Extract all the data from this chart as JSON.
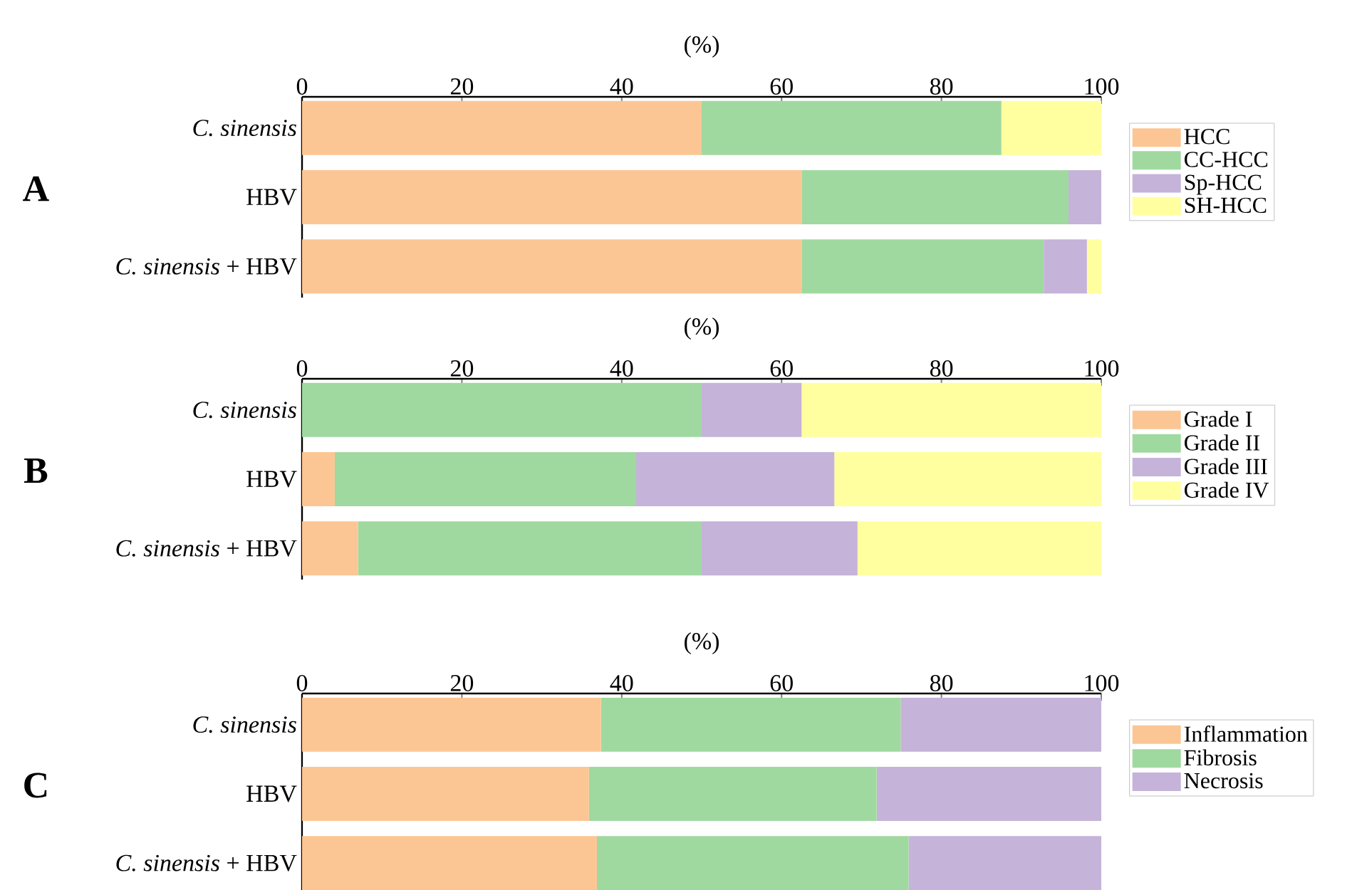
{
  "chart_data": [
    {
      "type": "bar",
      "orientation": "horizontal",
      "stacked": true,
      "title": "A",
      "xlabel": "(%)",
      "legend": "right",
      "categories": [
        "*C. sinensis*",
        "HBV",
        "*C. sinensis* + HBV"
      ],
      "xlim": [
        0,
        100
      ],
      "xticks": [
        0,
        20,
        40,
        60,
        80,
        100
      ],
      "series": [
        {
          "name": "HCC",
          "color": "#fcc694",
          "values": [
            50,
            62.5,
            62.5
          ]
        },
        {
          "name": "CC-HCC",
          "color": "#a0d9a0",
          "values": [
            37.5,
            33.4,
            30.3
          ]
        },
        {
          "name": "Sp-HCC",
          "color": "#c5b3d9",
          "values": [
            0,
            4.1,
            5.4
          ]
        },
        {
          "name": "SH-HCC",
          "color": "#ffff9f",
          "values": [
            12.5,
            0,
            1.8
          ]
        }
      ]
    },
    {
      "type": "bar",
      "orientation": "horizontal",
      "stacked": true,
      "title": "B",
      "xlabel": "(%)",
      "legend": "right",
      "categories": [
        "*C. sinensis*",
        "HBV",
        "*C. sinensis* + HBV"
      ],
      "xlim": [
        0,
        100
      ],
      "xticks": [
        0,
        20,
        40,
        60,
        80,
        100
      ],
      "series": [
        {
          "name": "Grade I",
          "color": "#fcc694",
          "values": [
            0,
            4.1,
            7.0
          ]
        },
        {
          "name": "Grade II",
          "color": "#a0d9a0",
          "values": [
            50,
            37.7,
            43.0
          ]
        },
        {
          "name": "Grade III",
          "color": "#c5b3d9",
          "values": [
            12.5,
            24.8,
            19.5
          ]
        },
        {
          "name": "Grade IV",
          "color": "#ffff9f",
          "values": [
            37.5,
            33.4,
            30.5
          ]
        }
      ]
    },
    {
      "type": "bar",
      "orientation": "horizontal",
      "stacked": true,
      "title": "C",
      "xlabel": "(%)",
      "legend": "right",
      "categories": [
        "*C. sinensis*",
        "HBV",
        "*C. sinensis* + HBV"
      ],
      "xlim": [
        0,
        100
      ],
      "xticks": [
        0,
        20,
        40,
        60,
        80,
        100
      ],
      "series": [
        {
          "name": "Inflammation",
          "color": "#fcc694",
          "values": [
            37.4,
            35.9,
            36.9
          ]
        },
        {
          "name": "Fibrosis",
          "color": "#a0d9a0",
          "values": [
            37.5,
            36.0,
            39.0
          ]
        },
        {
          "name": "Necrosis",
          "color": "#c5b3d9",
          "values": [
            25.1,
            28.1,
            24.1
          ]
        }
      ]
    }
  ]
}
